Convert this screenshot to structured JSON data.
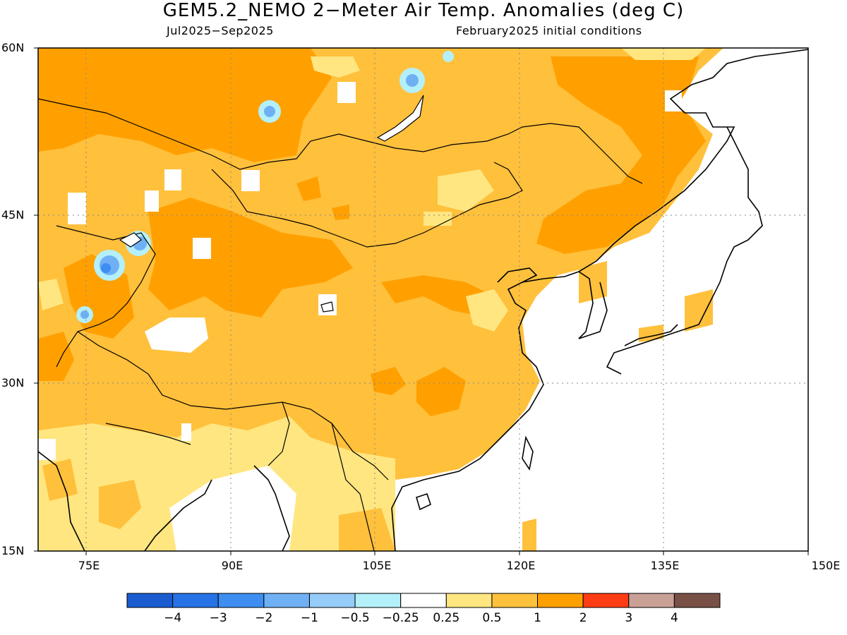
{
  "title": "GEM5.2_NEMO 2−Meter Air Temp. Anomalies (deg C)",
  "subtitle_left": "Jul2025−Sep2025",
  "subtitle_right": "February2025 initial conditions",
  "map": {
    "region": "East Asia",
    "lon_range": [
      68,
      150
    ],
    "lat_range": [
      15,
      60
    ],
    "lat_labels": [
      "60N",
      "45N",
      "30N",
      "15N"
    ],
    "lon_labels": [
      "75E",
      "90E",
      "105E",
      "120E",
      "135E",
      "150E"
    ],
    "grid": "dotted"
  },
  "colorbar": {
    "colors": [
      "#1a5cd0",
      "#2672e6",
      "#3d8ef0",
      "#6fb0f5",
      "#96ccf8",
      "#b4f0fa",
      "#ffffff",
      "#ffe680",
      "#ffc03c",
      "#ffa000",
      "#ff3c14",
      "#c8a096",
      "#785046"
    ],
    "labels": [
      "−4",
      "−3",
      "−2",
      "−1",
      "−0.5",
      "−0.25",
      "0.25",
      "0.5",
      "1",
      "2",
      "3",
      "4"
    ]
  }
}
